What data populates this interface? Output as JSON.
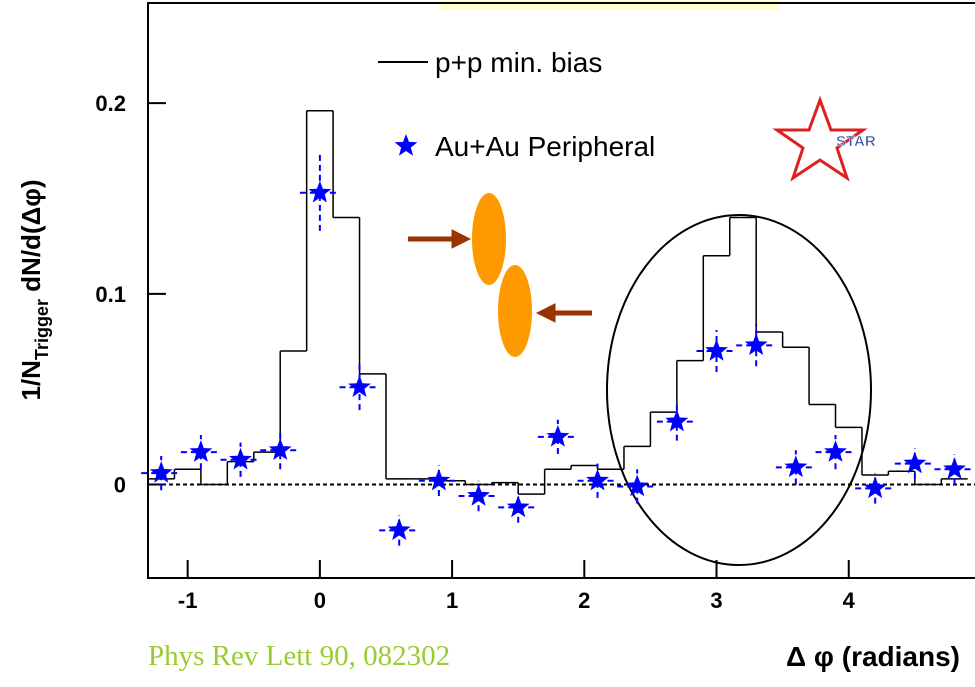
{
  "chart_data": {
    "type": "histogram",
    "ylabel": "1/N",
    "ylabel_sub": "Trigger",
    "ylabel_rest": " dN/d(Δφ)",
    "xlabel": "Δ φ (radians)",
    "annotation": "Phys Rev Lett 90, 082302",
    "logo": "STAR",
    "xlim": [
      -1.3,
      4.955
    ],
    "ylim": [
      -0.049,
      0.2525
    ],
    "xticks": [
      -1,
      0,
      1,
      2,
      3,
      4
    ],
    "yticks": [
      0,
      0.1,
      0.2
    ],
    "series": [
      {
        "name": "p+p min. bias",
        "type": "histogram",
        "color": "#000000",
        "bins": [
          -1.3,
          -1.1,
          -0.9,
          -0.7,
          -0.5,
          -0.3,
          -0.1,
          0.1,
          0.3,
          0.5,
          0.7,
          0.9,
          1.1,
          1.3,
          1.5,
          1.7,
          1.9,
          2.1,
          2.3,
          2.5,
          2.7,
          2.9,
          3.1,
          3.3,
          3.5,
          3.7,
          3.9,
          4.1,
          4.3,
          4.5,
          4.7,
          4.9
        ],
        "values": [
          0.003,
          0.008,
          0.0,
          0.012,
          0.017,
          0.07,
          0.196,
          0.14,
          0.058,
          0.003,
          0.003,
          0.002,
          0.0,
          0.001,
          -0.005,
          0.008,
          0.01,
          0.008,
          0.02,
          0.038,
          0.065,
          0.12,
          0.14,
          0.08,
          0.072,
          0.042,
          0.03,
          0.005,
          0.007,
          0.0,
          0.003
        ]
      },
      {
        "name": "Au+Au Peripheral",
        "type": "scatter",
        "color": "#0000ff",
        "x": [
          -1.2,
          -0.9,
          -0.6,
          -0.3,
          0.0,
          0.3,
          0.6,
          0.9,
          1.2,
          1.5,
          1.8,
          2.1,
          2.4,
          2.7,
          3.0,
          3.3,
          3.6,
          3.9,
          4.2,
          4.5,
          4.8
        ],
        "values": [
          0.006,
          0.017,
          0.013,
          0.018,
          0.153,
          0.051,
          -0.024,
          0.002,
          -0.006,
          -0.012,
          0.025,
          0.002,
          -0.001,
          0.033,
          0.07,
          0.073,
          0.009,
          0.017,
          -0.002,
          0.011,
          0.008
        ],
        "errors": [
          0.009,
          0.009,
          0.009,
          0.01,
          0.02,
          0.012,
          0.008,
          0.008,
          0.008,
          0.008,
          0.009,
          0.009,
          0.009,
          0.01,
          0.011,
          0.011,
          0.009,
          0.009,
          0.008,
          0.008,
          0.008
        ]
      }
    ]
  }
}
